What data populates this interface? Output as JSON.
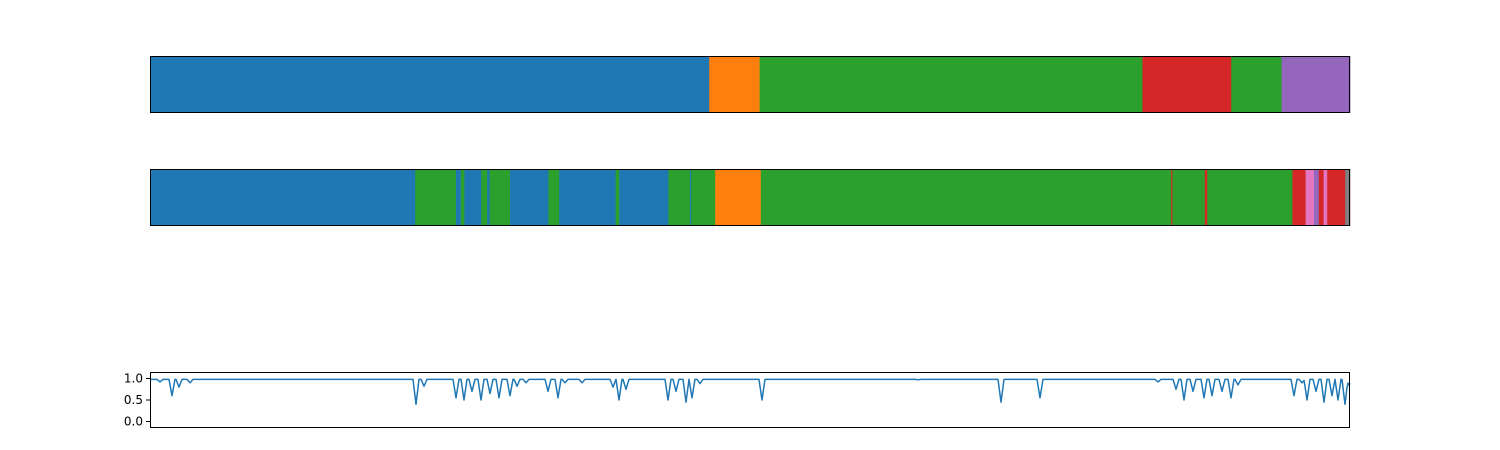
{
  "chart_data": [
    {
      "type": "bar",
      "orientation": "horizontal-stacked-segments",
      "x_range": [
        0,
        1
      ],
      "show_x_ticks": false,
      "show_y_ticks": false,
      "grid": false,
      "segments": [
        {
          "start": 0.0,
          "end": 0.466,
          "color": "#1f77b4"
        },
        {
          "start": 0.466,
          "end": 0.508,
          "color": "#ff7f0e"
        },
        {
          "start": 0.508,
          "end": 0.827,
          "color": "#2ca02c"
        },
        {
          "start": 0.827,
          "end": 0.901,
          "color": "#d62728"
        },
        {
          "start": 0.901,
          "end": 0.943,
          "color": "#2ca02c"
        },
        {
          "start": 0.943,
          "end": 1.0,
          "color": "#9467bd"
        }
      ]
    },
    {
      "type": "bar",
      "orientation": "horizontal-stacked-segments",
      "x_range": [
        0,
        1
      ],
      "show_x_ticks": false,
      "show_y_ticks": false,
      "grid": false,
      "segments": [
        {
          "start": 0.0,
          "end": 0.221,
          "color": "#1f77b4"
        },
        {
          "start": 0.221,
          "end": 0.224,
          "color": "#2ca02c"
        },
        {
          "start": 0.224,
          "end": 0.255,
          "color": "#2ca02c"
        },
        {
          "start": 0.255,
          "end": 0.259,
          "color": "#1f77b4"
        },
        {
          "start": 0.259,
          "end": 0.262,
          "color": "#2ca02c"
        },
        {
          "start": 0.262,
          "end": 0.276,
          "color": "#1f77b4"
        },
        {
          "start": 0.276,
          "end": 0.281,
          "color": "#2ca02c"
        },
        {
          "start": 0.281,
          "end": 0.283,
          "color": "#1f77b4"
        },
        {
          "start": 0.283,
          "end": 0.3,
          "color": "#2ca02c"
        },
        {
          "start": 0.3,
          "end": 0.332,
          "color": "#1f77b4"
        },
        {
          "start": 0.332,
          "end": 0.341,
          "color": "#2ca02c"
        },
        {
          "start": 0.341,
          "end": 0.388,
          "color": "#1f77b4"
        },
        {
          "start": 0.388,
          "end": 0.391,
          "color": "#2ca02c"
        },
        {
          "start": 0.391,
          "end": 0.432,
          "color": "#1f77b4"
        },
        {
          "start": 0.432,
          "end": 0.45,
          "color": "#2ca02c"
        },
        {
          "start": 0.45,
          "end": 0.451,
          "color": "#1f77b4"
        },
        {
          "start": 0.451,
          "end": 0.471,
          "color": "#2ca02c"
        },
        {
          "start": 0.471,
          "end": 0.509,
          "color": "#ff7f0e"
        },
        {
          "start": 0.509,
          "end": 0.851,
          "color": "#2ca02c"
        },
        {
          "start": 0.851,
          "end": 0.852,
          "color": "#d62728"
        },
        {
          "start": 0.852,
          "end": 0.879,
          "color": "#2ca02c"
        },
        {
          "start": 0.879,
          "end": 0.881,
          "color": "#d62728"
        },
        {
          "start": 0.881,
          "end": 0.952,
          "color": "#2ca02c"
        },
        {
          "start": 0.952,
          "end": 0.963,
          "color": "#d62728"
        },
        {
          "start": 0.963,
          "end": 0.97,
          "color": "#e377c2"
        },
        {
          "start": 0.97,
          "end": 0.974,
          "color": "#9467bd"
        },
        {
          "start": 0.974,
          "end": 0.978,
          "color": "#d62728"
        },
        {
          "start": 0.978,
          "end": 0.981,
          "color": "#e377c2"
        },
        {
          "start": 0.981,
          "end": 0.996,
          "color": "#d62728"
        },
        {
          "start": 0.996,
          "end": 1.0,
          "color": "#7f7f7f"
        }
      ]
    },
    {
      "type": "line",
      "x_range": [
        0,
        1
      ],
      "ylim": [
        -0.15,
        1.15
      ],
      "yticks": [
        0.0,
        0.5,
        1.0
      ],
      "ytick_labels": [
        "0.0",
        "0.5",
        "1.0"
      ],
      "show_x_ticks": false,
      "grid": false,
      "color": "#1f77b4",
      "baseline": 0.98,
      "dips": [
        {
          "x": 0.008,
          "y": 0.92
        },
        {
          "x": 0.018,
          "y": 0.6
        },
        {
          "x": 0.024,
          "y": 0.8
        },
        {
          "x": 0.033,
          "y": 0.9
        },
        {
          "x": 0.222,
          "y": 0.4
        },
        {
          "x": 0.228,
          "y": 0.82
        },
        {
          "x": 0.255,
          "y": 0.55
        },
        {
          "x": 0.262,
          "y": 0.5
        },
        {
          "x": 0.268,
          "y": 0.7
        },
        {
          "x": 0.276,
          "y": 0.5
        },
        {
          "x": 0.283,
          "y": 0.65
        },
        {
          "x": 0.291,
          "y": 0.55
        },
        {
          "x": 0.3,
          "y": 0.6
        },
        {
          "x": 0.306,
          "y": 0.82
        },
        {
          "x": 0.313,
          "y": 0.9
        },
        {
          "x": 0.332,
          "y": 0.7
        },
        {
          "x": 0.34,
          "y": 0.55
        },
        {
          "x": 0.346,
          "y": 0.9
        },
        {
          "x": 0.36,
          "y": 0.9
        },
        {
          "x": 0.386,
          "y": 0.8
        },
        {
          "x": 0.391,
          "y": 0.5
        },
        {
          "x": 0.397,
          "y": 0.75
        },
        {
          "x": 0.432,
          "y": 0.5
        },
        {
          "x": 0.438,
          "y": 0.7
        },
        {
          "x": 0.447,
          "y": 0.45
        },
        {
          "x": 0.452,
          "y": 0.55
        },
        {
          "x": 0.458,
          "y": 0.88
        },
        {
          "x": 0.51,
          "y": 0.5
        },
        {
          "x": 0.64,
          "y": 0.97
        },
        {
          "x": 0.709,
          "y": 0.45
        },
        {
          "x": 0.742,
          "y": 0.55
        },
        {
          "x": 0.84,
          "y": 0.92
        },
        {
          "x": 0.855,
          "y": 0.75
        },
        {
          "x": 0.862,
          "y": 0.5
        },
        {
          "x": 0.869,
          "y": 0.7
        },
        {
          "x": 0.878,
          "y": 0.55
        },
        {
          "x": 0.885,
          "y": 0.6
        },
        {
          "x": 0.893,
          "y": 0.7
        },
        {
          "x": 0.901,
          "y": 0.55
        },
        {
          "x": 0.907,
          "y": 0.85
        },
        {
          "x": 0.953,
          "y": 0.6
        },
        {
          "x": 0.96,
          "y": 0.9
        },
        {
          "x": 0.964,
          "y": 0.5
        },
        {
          "x": 0.972,
          "y": 0.7
        },
        {
          "x": 0.978,
          "y": 0.45
        },
        {
          "x": 0.985,
          "y": 0.6
        },
        {
          "x": 0.99,
          "y": 0.5
        },
        {
          "x": 0.996,
          "y": 0.4
        },
        {
          "x": 0.999,
          "y": 0.85
        }
      ]
    }
  ]
}
